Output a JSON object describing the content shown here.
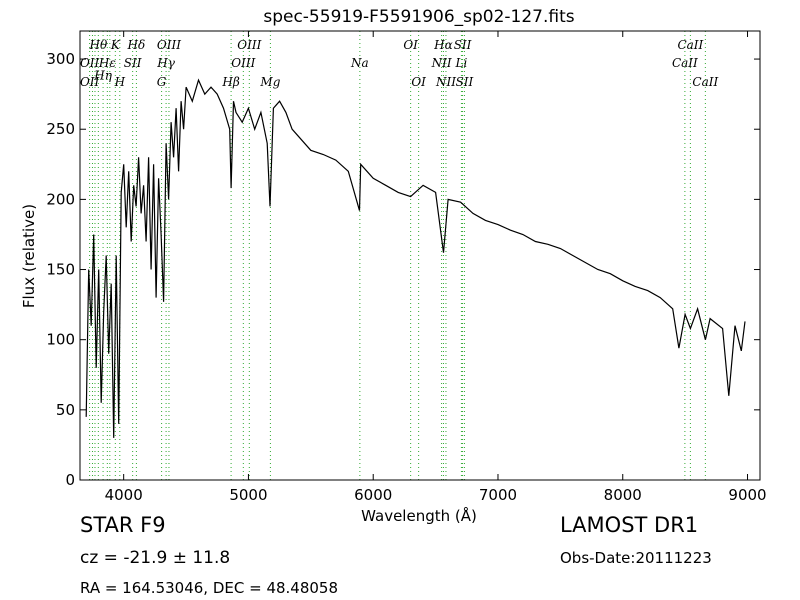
{
  "chart_data": {
    "type": "line",
    "title": "spec-55919-F5591906_sp02-127.fits",
    "xlabel": "Wavelength (Å)",
    "ylabel": "Flux (relative)",
    "xlim": [
      3650,
      9100
    ],
    "ylim": [
      0,
      320
    ],
    "xticks": [
      4000,
      5000,
      6000,
      7000,
      8000,
      9000
    ],
    "yticks": [
      0,
      50,
      100,
      150,
      200,
      250,
      300
    ],
    "grid": false,
    "line_color": "#000000",
    "marker_color": "#33aa33",
    "series": [
      {
        "x": [
          3700,
          3720,
          3740,
          3760,
          3780,
          3800,
          3820,
          3840,
          3860,
          3880,
          3900,
          3920,
          3940,
          3960,
          3980,
          4000,
          4020,
          4040,
          4060,
          4080,
          4100,
          4120,
          4140,
          4160,
          4180,
          4200,
          4220,
          4240,
          4260,
          4280,
          4300,
          4320,
          4340,
          4360,
          4380,
          4400,
          4420,
          4440,
          4460,
          4480,
          4500,
          4550,
          4600,
          4650,
          4700,
          4750,
          4800,
          4850,
          4861,
          4880,
          4900,
          4950,
          5000,
          5050,
          5100,
          5150,
          5173,
          5200,
          5250,
          5300,
          5350,
          5400,
          5450,
          5500,
          5600,
          5700,
          5800,
          5890,
          5900,
          6000,
          6100,
          6200,
          6300,
          6400,
          6500,
          6563,
          6600,
          6700,
          6800,
          6900,
          7000,
          7100,
          7200,
          7300,
          7400,
          7500,
          7600,
          7700,
          7800,
          7900,
          8000,
          8100,
          8200,
          8300,
          8400,
          8450,
          8500,
          8542,
          8600,
          8662,
          8700,
          8800,
          8850,
          8900,
          8950,
          8980
        ],
        "y": [
          45,
          150,
          110,
          175,
          80,
          150,
          55,
          120,
          160,
          90,
          140,
          30,
          160,
          40,
          205,
          225,
          180,
          220,
          170,
          210,
          195,
          230,
          190,
          210,
          170,
          230,
          150,
          225,
          130,
          215,
          175,
          127,
          240,
          200,
          255,
          230,
          265,
          220,
          270,
          250,
          280,
          270,
          285,
          275,
          280,
          275,
          265,
          250,
          208,
          270,
          262,
          255,
          265,
          250,
          262,
          240,
          195,
          265,
          270,
          262,
          250,
          245,
          240,
          235,
          232,
          228,
          220,
          192,
          225,
          215,
          210,
          205,
          202,
          210,
          205,
          162,
          200,
          198,
          190,
          185,
          182,
          178,
          175,
          170,
          168,
          165,
          160,
          155,
          150,
          147,
          142,
          138,
          135,
          130,
          122,
          94,
          118,
          108,
          122,
          100,
          115,
          108,
          60,
          110,
          92,
          113
        ]
      }
    ],
    "line_markers": [
      {
        "x": 3727,
        "lines": [
          {
            "label": "OII",
            "row": 1
          },
          {
            "label": "OII",
            "row": 2
          }
        ]
      },
      {
        "x": 3750,
        "lines": []
      },
      {
        "x": 3770,
        "lines": []
      },
      {
        "x": 3797,
        "lines": [
          {
            "label": "Hθ",
            "row": 0
          }
        ]
      },
      {
        "x": 3835,
        "lines": [
          {
            "label": "Hη",
            "row": 1.7
          }
        ]
      },
      {
        "x": 3869,
        "lines": [
          {
            "label": "Hε",
            "row": 1
          }
        ]
      },
      {
        "x": 3889,
        "lines": []
      },
      {
        "x": 3933,
        "lines": [
          {
            "label": "K",
            "row": 0
          }
        ]
      },
      {
        "x": 3969,
        "lines": [
          {
            "label": "H",
            "row": 2
          }
        ]
      },
      {
        "x": 4072,
        "lines": [
          {
            "label": "SII",
            "row": 1
          }
        ]
      },
      {
        "x": 4102,
        "lines": [
          {
            "label": "Hδ",
            "row": 0
          }
        ]
      },
      {
        "x": 4304,
        "lines": [
          {
            "label": "G",
            "row": 2
          }
        ]
      },
      {
        "x": 4340,
        "lines": [
          {
            "label": "Hγ",
            "row": 1
          }
        ]
      },
      {
        "x": 4363,
        "lines": [
          {
            "label": "OIII",
            "row": 0
          }
        ]
      },
      {
        "x": 4861,
        "lines": [
          {
            "label": "Hβ",
            "row": 2
          }
        ]
      },
      {
        "x": 4959,
        "lines": [
          {
            "label": "OIII",
            "row": 1
          }
        ]
      },
      {
        "x": 5007,
        "lines": [
          {
            "label": "OIII",
            "row": 0
          }
        ]
      },
      {
        "x": 5176,
        "lines": [
          {
            "label": "Mg",
            "row": 2
          }
        ]
      },
      {
        "x": 5893,
        "lines": [
          {
            "label": "Na",
            "row": 1
          }
        ]
      },
      {
        "x": 6300,
        "lines": [
          {
            "label": "OI",
            "row": 0
          }
        ]
      },
      {
        "x": 6364,
        "lines": [
          {
            "label": "OI",
            "row": 2
          }
        ]
      },
      {
        "x": 6548,
        "lines": [
          {
            "label": "NII",
            "row": 1
          }
        ]
      },
      {
        "x": 6563,
        "lines": [
          {
            "label": "Hα",
            "row": 0
          }
        ]
      },
      {
        "x": 6583,
        "lines": [
          {
            "label": "NII",
            "row": 2
          }
        ]
      },
      {
        "x": 6707,
        "lines": [
          {
            "label": "Li",
            "row": 1
          }
        ]
      },
      {
        "x": 6716,
        "lines": [
          {
            "label": "SII",
            "row": 0
          }
        ]
      },
      {
        "x": 6731,
        "lines": [
          {
            "label": "SII",
            "row": 2
          }
        ]
      },
      {
        "x": 8498,
        "lines": [
          {
            "label": "CaII",
            "row": 1
          }
        ]
      },
      {
        "x": 8542,
        "lines": [
          {
            "label": "CaII",
            "row": 0
          }
        ]
      },
      {
        "x": 8662,
        "lines": [
          {
            "label": "CaII",
            "row": 2
          }
        ]
      }
    ]
  },
  "info": {
    "class": "STAR   F9",
    "cz": "cz = -21.9 ± 11.8",
    "radec": "RA = 164.53046, DEC = 48.48058",
    "survey": "LAMOST DR1",
    "obsdate": "Obs-Date:20111223"
  }
}
